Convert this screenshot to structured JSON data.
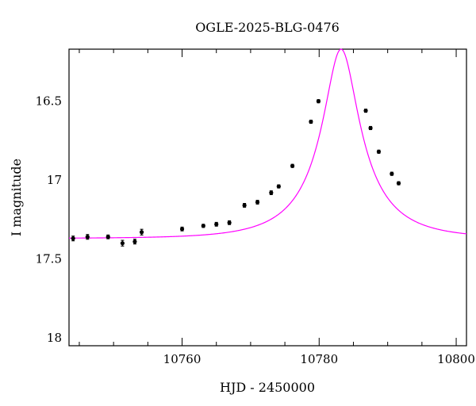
{
  "chart_data": {
    "type": "scatter",
    "title": "OGLE-2025-BLG-0476",
    "xlabel": "HJD - 2450000",
    "ylabel": "I magnitude",
    "xlim": [
      10743.5,
      10801.5
    ],
    "ylim": [
      18.05,
      16.17
    ],
    "y_inverted": true,
    "x_ticks": [
      10760,
      10780,
      10800
    ],
    "x_tick_labels": [
      "10760",
      "10780",
      "10800"
    ],
    "y_ticks": [
      16.5,
      17,
      17.5,
      18
    ],
    "y_tick_labels": [
      "16.5",
      "17",
      "17.5",
      "18"
    ],
    "grid": false,
    "model_color": "#ff00ff",
    "point_color": "#000000",
    "model": {
      "t0": 10783.2,
      "peak_mag": 16.17,
      "base_mag": 17.37,
      "tE": 9.5,
      "u0": 0.28
    },
    "series": [
      {
        "x": [
          10744.1,
          10746.2,
          10749.2,
          10751.3,
          10753.1,
          10754.1,
          10760.0,
          10763.1,
          10765.0,
          10766.9,
          10769.1,
          10771.0,
          10773.0,
          10774.1,
          10776.1,
          10778.8,
          10779.9,
          10786.8,
          10787.5,
          10788.7,
          10790.6,
          10791.6
        ],
        "y": [
          17.37,
          17.36,
          17.36,
          17.4,
          17.39,
          17.33,
          17.31,
          17.29,
          17.28,
          17.27,
          17.16,
          17.14,
          17.08,
          17.04,
          16.91,
          16.63,
          16.5,
          16.56,
          16.67,
          16.82,
          16.96,
          17.02
        ],
        "err": [
          0.015,
          0.015,
          0.012,
          0.018,
          0.015,
          0.018,
          0.012,
          0.01,
          0.012,
          0.012,
          0.012,
          0.012,
          0.012,
          0.01,
          0.01,
          0.01,
          0.01,
          0.01,
          0.01,
          0.01,
          0.01,
          0.01
        ]
      }
    ]
  }
}
